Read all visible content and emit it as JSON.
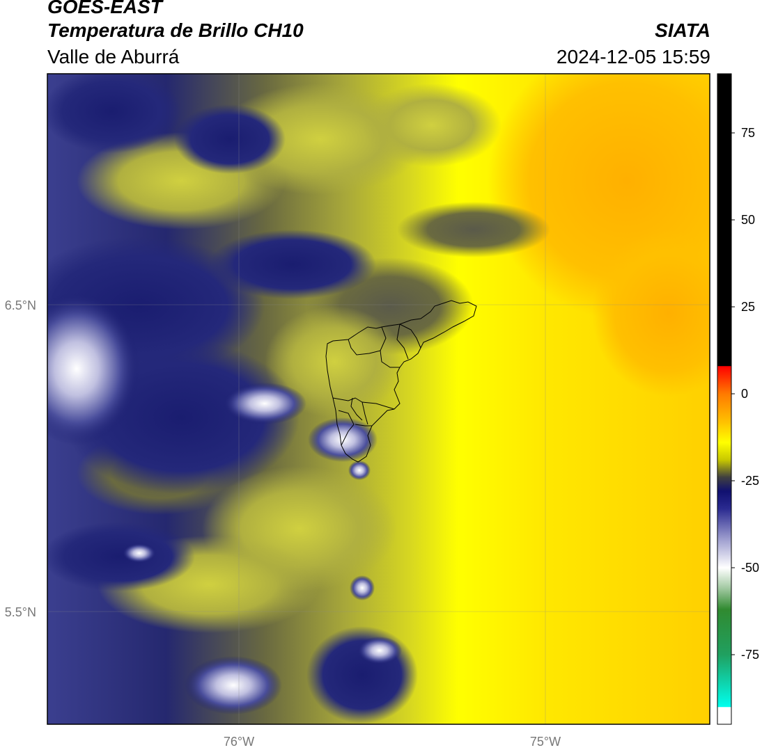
{
  "header": {
    "satellite": "GOES-EAST",
    "product": "Temperatura de Brillo CH10",
    "region": "Valle de Aburrá",
    "agency": "SIATA",
    "datetime": "2024-12-05 15:59"
  },
  "map": {
    "lon_labels": [
      "76°W",
      "75°W"
    ],
    "lat_labels": [
      "6.5°N",
      "5.5°N"
    ],
    "gridlines": true
  },
  "colorbar": {
    "ticks": [
      "75",
      "50",
      "25",
      "0",
      "-25",
      "-50",
      "-75"
    ],
    "tick_values": [
      75,
      50,
      25,
      0,
      -25,
      -50,
      -75
    ],
    "range": [
      -95,
      92
    ],
    "stops": [
      {
        "v": 92,
        "c": "#000000"
      },
      {
        "v": 8,
        "c": "#000000"
      },
      {
        "v": 7.9,
        "c": "#ff0000"
      },
      {
        "v": 0,
        "c": "#ff7a00"
      },
      {
        "v": -8,
        "c": "#ffc000"
      },
      {
        "v": -14,
        "c": "#ffff00"
      },
      {
        "v": -19,
        "c": "#c8c800"
      },
      {
        "v": -24,
        "c": "#404040"
      },
      {
        "v": -28,
        "c": "#101070"
      },
      {
        "v": -33,
        "c": "#2a2a90"
      },
      {
        "v": -42,
        "c": "#a0a0d0"
      },
      {
        "v": -50,
        "c": "#ffffff"
      },
      {
        "v": -56,
        "c": "#a0c8a0"
      },
      {
        "v": -62,
        "c": "#308a30"
      },
      {
        "v": -75,
        "c": "#20a060"
      },
      {
        "v": -90,
        "c": "#00ffee"
      },
      {
        "v": -90.1,
        "c": "#ffffff"
      },
      {
        "v": -95,
        "c": "#ffffff"
      }
    ]
  },
  "colors": {
    "deep_cloud": "#171a6e",
    "mid_cloud": "#3b3f8f",
    "light_cloud": "#b9b9dd",
    "olive": "#75752e",
    "khaki": "#c2c23d",
    "yellow": "#ffff00",
    "gold": "#ffe000",
    "orange": "#ffb000"
  }
}
